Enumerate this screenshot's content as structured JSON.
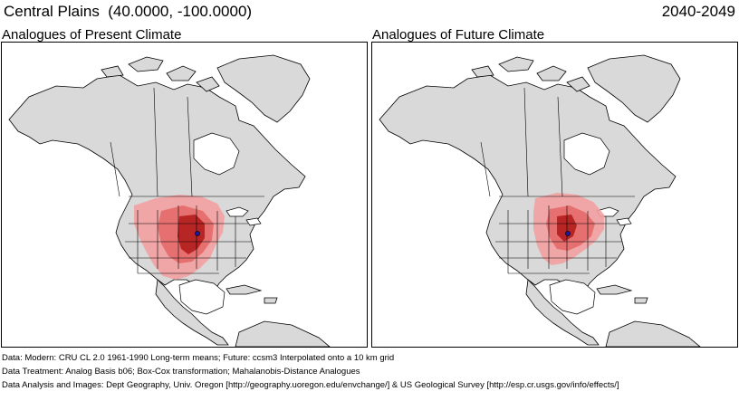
{
  "header": {
    "region_title": "Central Plains  (40.0000, -100.0000)",
    "period": "2040-2049"
  },
  "panels": {
    "present": {
      "title": "Analogues of Present Climate"
    },
    "future": {
      "title": "Analogues of Future Climate"
    }
  },
  "map": {
    "target_location": {
      "lat": 40.0,
      "lon": -100.0
    },
    "colors": {
      "land": "#d9d9d9",
      "water": "#ffffff",
      "borders": "#000000",
      "analogue_weak": "#f2a0a0",
      "analogue_mid": "#e46a6a",
      "analogue_strong": "#b31d1d",
      "target_marker": "#1a1aa0"
    }
  },
  "footer": {
    "data_line": "Data:  Modern: CRU CL 2.0 1961-1990 Long-term means; Future: ccsm3 Interpolated onto a 10 km grid",
    "treatment_line": "Data Treatment:  Analog Basis b06; Box-Cox transformation; Mahalanobis-Distance Analogues",
    "credits_line": "Data Analysis and Images:  Dept Geography, Univ. Oregon [http://geography.uoregon.edu/envchange/] & US Geological Survey [http://esp.cr.usgs.gov/info/effects/]"
  }
}
